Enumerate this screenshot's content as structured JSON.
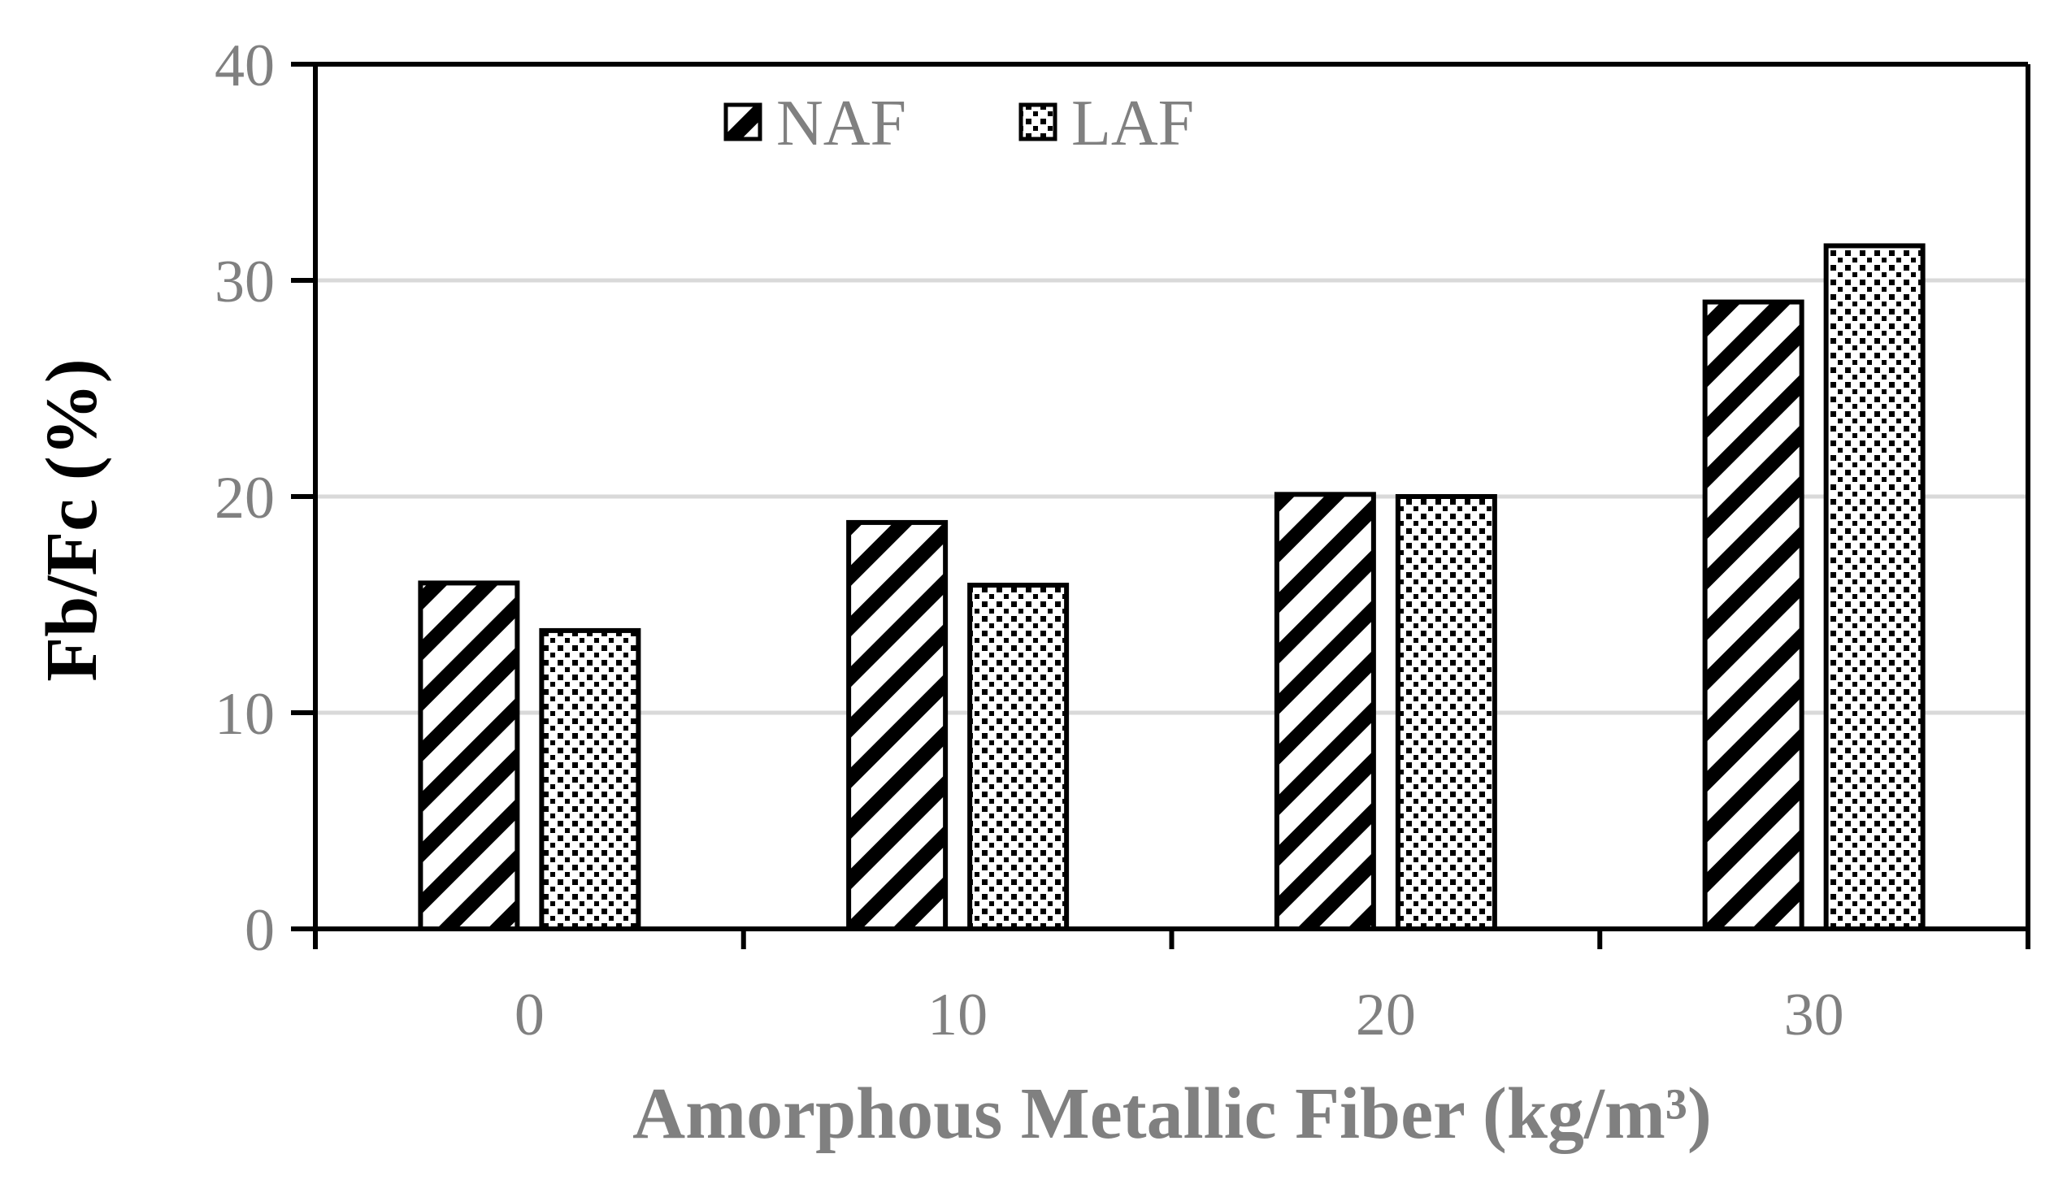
{
  "chart_data": {
    "type": "bar",
    "categories": [
      "0",
      "10",
      "20",
      "30"
    ],
    "series": [
      {
        "name": "NAF",
        "values": [
          16,
          18.8,
          20.1,
          29
        ],
        "pattern": "diagonal-stripes"
      },
      {
        "name": "LAF",
        "values": [
          13.8,
          15.9,
          20,
          31.6
        ],
        "pattern": "dots"
      }
    ],
    "xlabel": "Amorphous Metallic Fiber (kg/m³)",
    "ylabel": "Fb/Fc (%)",
    "ylim": [
      0,
      40
    ],
    "yticks": [
      "0",
      "10",
      "20",
      "30",
      "40"
    ],
    "grid": true,
    "legend_position": "top-center",
    "colors": {
      "bar_fill": "#ffffff",
      "bar_pattern": "#000000",
      "bar_outline": "#000000",
      "gridline": "#d9d9d9",
      "axis": "#000000",
      "tick_text": "#808080",
      "x_title_text": "#808080",
      "y_title_text": "#000000"
    }
  }
}
